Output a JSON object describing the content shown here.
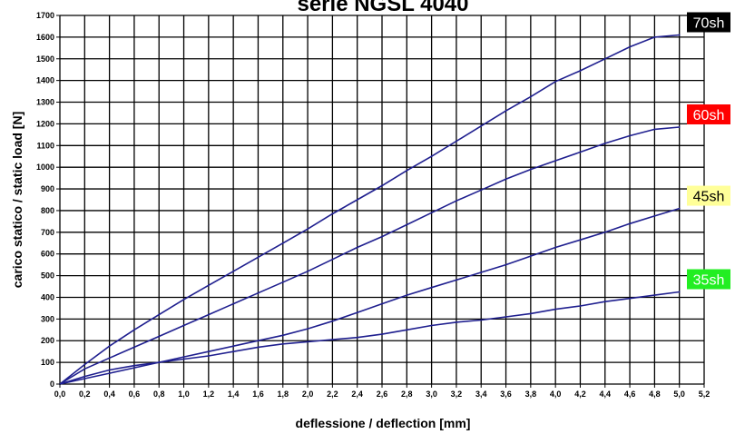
{
  "chart_data": {
    "type": "line",
    "title": "serie NGSL 4040",
    "xlabel": "deflessione / deflection [mm]",
    "ylabel": "carico statico / static load [N]",
    "xlim": [
      0,
      5.2
    ],
    "ylim": [
      0,
      1700
    ],
    "x_ticks": [
      "0,0",
      "0,2",
      "0,4",
      "0,6",
      "0,8",
      "1,0",
      "1,2",
      "1,4",
      "1,6",
      "1,8",
      "2,0",
      "2,2",
      "2,4",
      "2,6",
      "2,8",
      "3,0",
      "3,2",
      "3,4",
      "3,6",
      "3,8",
      "4,0",
      "4,2",
      "4,4",
      "4,6",
      "4,8",
      "5,0",
      "5,2"
    ],
    "y_ticks": [
      "0",
      "100",
      "200",
      "300",
      "400",
      "500",
      "600",
      "700",
      "800",
      "900",
      "1000",
      "1100",
      "1200",
      "1300",
      "1400",
      "1500",
      "1600",
      "1700"
    ],
    "grid": true,
    "line_color": "#1f1f8f",
    "series": [
      {
        "name": "70sh",
        "label_bg": "#000000",
        "label_fg": "#ffffff",
        "x": [
          0,
          0.2,
          0.4,
          0.6,
          0.8,
          1.0,
          1.2,
          1.4,
          1.6,
          1.8,
          2.0,
          2.2,
          2.4,
          2.6,
          2.8,
          3.0,
          3.2,
          3.4,
          3.6,
          3.8,
          4.0,
          4.2,
          4.4,
          4.6,
          4.8,
          5.0
        ],
        "y": [
          0,
          90,
          175,
          250,
          320,
          390,
          455,
          520,
          585,
          650,
          715,
          785,
          850,
          915,
          985,
          1050,
          1120,
          1190,
          1260,
          1325,
          1395,
          1445,
          1500,
          1555,
          1600,
          1610
        ]
      },
      {
        "name": "60sh",
        "label_bg": "#ff0000",
        "label_fg": "#ffffff",
        "x": [
          0,
          0.2,
          0.4,
          0.6,
          0.8,
          1.0,
          1.2,
          1.4,
          1.6,
          1.8,
          2.0,
          2.2,
          2.4,
          2.6,
          2.8,
          3.0,
          3.2,
          3.4,
          3.6,
          3.8,
          4.0,
          4.2,
          4.4,
          4.6,
          4.8,
          5.0
        ],
        "y": [
          0,
          70,
          120,
          170,
          220,
          270,
          320,
          370,
          420,
          470,
          520,
          575,
          630,
          680,
          735,
          790,
          845,
          895,
          945,
          990,
          1030,
          1070,
          1110,
          1145,
          1175,
          1185
        ]
      },
      {
        "name": "45sh",
        "label_bg": "#ffff99",
        "label_fg": "#000000",
        "x": [
          0,
          0.2,
          0.4,
          0.6,
          0.8,
          1.0,
          1.2,
          1.4,
          1.6,
          1.8,
          2.0,
          2.2,
          2.4,
          2.6,
          2.8,
          3.0,
          3.2,
          3.4,
          3.6,
          3.8,
          4.0,
          4.2,
          4.4,
          4.6,
          4.8,
          5.0
        ],
        "y": [
          0,
          25,
          50,
          75,
          100,
          125,
          150,
          175,
          200,
          225,
          255,
          290,
          330,
          370,
          410,
          445,
          480,
          515,
          550,
          590,
          630,
          665,
          700,
          740,
          775,
          810
        ]
      },
      {
        "name": "35sh",
        "label_bg": "#22ee22",
        "label_fg": "#ffffff",
        "x": [
          0,
          0.2,
          0.4,
          0.6,
          0.8,
          1.0,
          1.2,
          1.4,
          1.6,
          1.8,
          2.0,
          2.2,
          2.4,
          2.6,
          2.8,
          3.0,
          3.2,
          3.4,
          3.6,
          3.8,
          4.0,
          4.2,
          4.4,
          4.6,
          4.8,
          5.0
        ],
        "y": [
          0,
          35,
          65,
          85,
          100,
          115,
          130,
          150,
          170,
          185,
          195,
          205,
          215,
          230,
          250,
          270,
          285,
          295,
          310,
          325,
          345,
          360,
          380,
          395,
          410,
          425
        ]
      }
    ]
  }
}
